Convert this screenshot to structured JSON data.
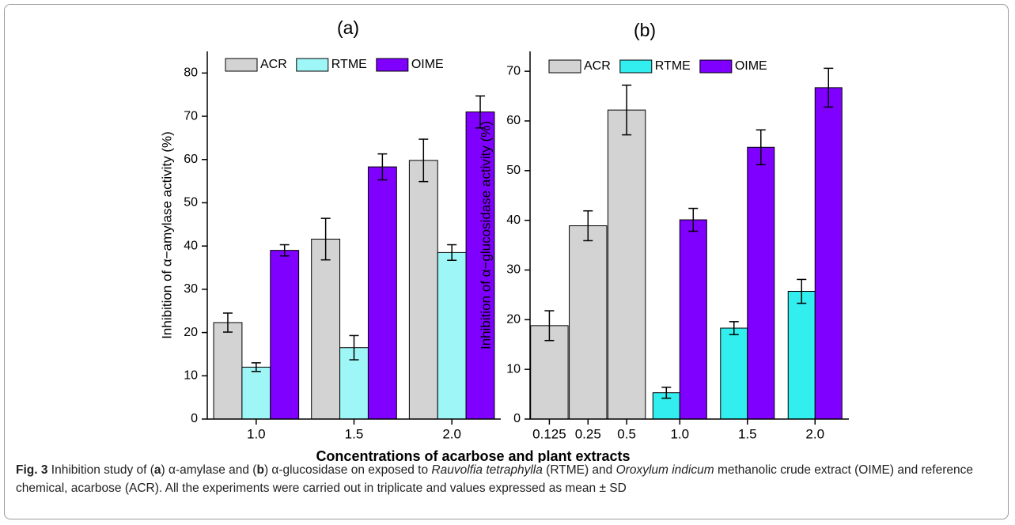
{
  "chart_data": [
    {
      "type": "bar",
      "title": "(a)",
      "ylabel": "Inhibition of α−amylase activity (%)",
      "categories": [
        "1.0",
        "1.5",
        "2.0"
      ],
      "series": [
        {
          "name": "ACR",
          "color": "#d3d3d3",
          "values": [
            22.3,
            41.6,
            59.8
          ],
          "errors": [
            2.2,
            4.8,
            4.9
          ]
        },
        {
          "name": "RTME",
          "color": "#9ff6f6",
          "values": [
            12.0,
            16.5,
            38.5
          ],
          "errors": [
            1.0,
            2.8,
            1.8
          ]
        },
        {
          "name": "OIME",
          "color": "#7f00ff",
          "values": [
            39.0,
            58.3,
            71.0
          ],
          "errors": [
            1.3,
            3.0,
            3.7
          ]
        }
      ],
      "ylim": [
        0,
        85
      ],
      "yticks": [
        0,
        10,
        20,
        30,
        40,
        50,
        60,
        70,
        80
      ],
      "legend": "upper left"
    },
    {
      "type": "bar",
      "title": "(b)",
      "ylabel": "Inhibition of α−glucosidase activity (%)",
      "categories": [
        "0.125",
        "0.25",
        "0.5",
        "1.0",
        "1.5",
        "2.0"
      ],
      "series": [
        {
          "name": "ACR",
          "color": "#d3d3d3",
          "values": [
            18.8,
            38.9,
            62.2,
            null,
            null,
            null
          ],
          "errors": [
            3.0,
            3.0,
            5.0,
            null,
            null,
            null
          ]
        },
        {
          "name": "RTME",
          "color": "#33eeee",
          "values": [
            null,
            null,
            null,
            5.3,
            18.3,
            25.7
          ],
          "errors": [
            null,
            null,
            null,
            1.1,
            1.3,
            2.4
          ]
        },
        {
          "name": "OIME",
          "color": "#7f00ff",
          "values": [
            null,
            null,
            null,
            40.1,
            54.7,
            66.7
          ],
          "errors": [
            null,
            null,
            null,
            2.3,
            3.5,
            3.9
          ]
        }
      ],
      "ylim": [
        0,
        74
      ],
      "yticks": [
        0,
        10,
        20,
        30,
        40,
        50,
        60,
        70
      ],
      "legend": "upper left"
    }
  ],
  "figure": {
    "xlabel": "Concentrations of acarbose and plant extracts",
    "caption": [
      "Fig. 3",
      " Inhibition study of (",
      "a",
      ") α-amylase and (",
      "b",
      ") α-glucosidase on exposed to ",
      "Rauvolfia tetraphylla",
      " (RTME) and ",
      "Oroxylum indicum",
      " methanolic crude extract (OIME) and reference chemical, acarbose (ACR). All the experiments were carried out in triplicate and values expressed as mean ± SD"
    ]
  }
}
